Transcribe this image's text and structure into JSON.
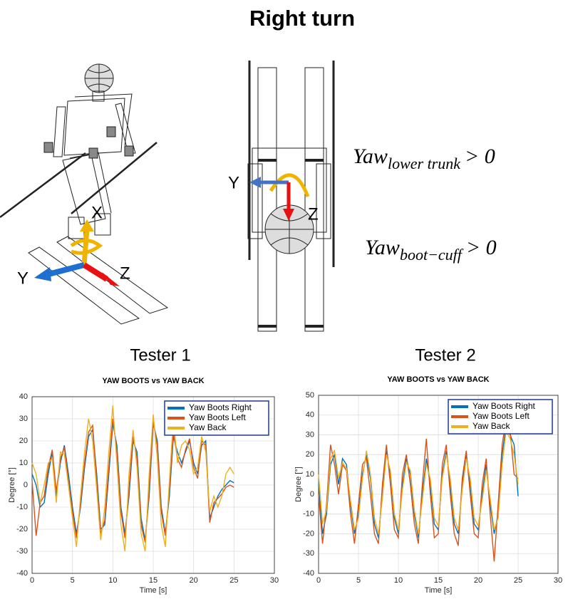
{
  "title": "Right turn",
  "diagram": {
    "left_axes": [
      "X",
      "Y",
      "Z"
    ],
    "middle_axes": [
      "Y",
      "Z"
    ],
    "equations": [
      {
        "base": "Yaw",
        "sub": "lower trunk",
        "rel": "> 0"
      },
      {
        "base": "Yaw",
        "sub": "boot−cuff",
        "rel": "> 0"
      }
    ]
  },
  "chart_data": [
    {
      "type": "line",
      "heading": "Tester 1",
      "title": "YAW BOOTS vs YAW BACK",
      "xlabel": "Time [s]",
      "ylabel": "Degree [°]",
      "xlim": [
        0,
        30
      ],
      "xticks": [
        0,
        5,
        10,
        15,
        20,
        25,
        30
      ],
      "ylim": [
        -40,
        40
      ],
      "yticks": [
        -40,
        -30,
        -20,
        -10,
        0,
        10,
        20,
        30,
        40
      ],
      "grid": true,
      "legend": "upper right",
      "x": [
        0,
        0.5,
        1,
        1.5,
        2,
        2.5,
        3,
        3.5,
        4,
        4.5,
        5,
        5.5,
        6,
        6.5,
        7,
        7.5,
        8,
        8.5,
        9,
        9.5,
        10,
        10.5,
        11,
        11.5,
        12,
        12.5,
        13,
        13.5,
        14,
        14.5,
        15,
        15.5,
        16,
        16.5,
        17,
        17.5,
        18,
        18.5,
        19,
        19.5,
        20,
        20.5,
        21,
        21.5,
        22,
        22.5,
        23,
        23.5,
        24,
        24.5,
        25
      ],
      "series": [
        {
          "name": "Yaw Boots Right",
          "color": "#0072bd",
          "values": [
            5,
            0,
            -10,
            -8,
            5,
            15,
            -5,
            10,
            18,
            5,
            -10,
            -22,
            -10,
            8,
            22,
            25,
            5,
            -20,
            -18,
            5,
            28,
            18,
            -10,
            -22,
            -5,
            20,
            15,
            -15,
            -25,
            -5,
            28,
            20,
            -10,
            -22,
            -5,
            22,
            15,
            10,
            15,
            20,
            10,
            5,
            18,
            20,
            -15,
            -10,
            -5,
            -2,
            0,
            2,
            1
          ]
        },
        {
          "name": "Yaw Boots Left",
          "color": "#d95319",
          "values": [
            2,
            -23,
            -8,
            -5,
            8,
            16,
            -3,
            12,
            17,
            2,
            -12,
            -24,
            -8,
            10,
            24,
            27,
            2,
            -22,
            -16,
            8,
            30,
            15,
            -12,
            -24,
            -2,
            22,
            12,
            -18,
            -26,
            -2,
            29,
            18,
            -12,
            -23,
            -2,
            24,
            12,
            8,
            16,
            21,
            8,
            3,
            20,
            18,
            -17,
            -8,
            -6,
            -4,
            -1,
            0,
            -1
          ]
        },
        {
          "name": "Yaw Back",
          "color": "#edb120",
          "values": [
            10,
            5,
            -8,
            0,
            10,
            12,
            -8,
            15,
            14,
            0,
            -15,
            -28,
            -5,
            15,
            30,
            20,
            -2,
            -25,
            -10,
            15,
            36,
            10,
            -18,
            -30,
            5,
            25,
            8,
            -22,
            -30,
            5,
            32,
            12,
            -18,
            -28,
            2,
            30,
            10,
            18,
            20,
            16,
            5,
            8,
            22,
            15,
            -12,
            -5,
            -10,
            -5,
            5,
            8,
            5
          ]
        }
      ]
    },
    {
      "type": "line",
      "heading": "Tester 2",
      "title": "YAW BOOTS vs YAW BACK",
      "xlabel": "Time [s]",
      "ylabel": "Degree [°]",
      "xlim": [
        0,
        30
      ],
      "xticks": [
        0,
        5,
        10,
        15,
        20,
        25,
        30
      ],
      "ylim": [
        -40,
        50
      ],
      "yticks": [
        -40,
        -30,
        -20,
        -10,
        0,
        10,
        20,
        30,
        40,
        50
      ],
      "grid": true,
      "legend": "upper right",
      "x": [
        0,
        0.5,
        1,
        1.5,
        2,
        2.5,
        3,
        3.5,
        4,
        4.5,
        5,
        5.5,
        6,
        6.5,
        7,
        7.5,
        8,
        8.5,
        9,
        9.5,
        10,
        10.5,
        11,
        11.5,
        12,
        12.5,
        13,
        13.5,
        14,
        14.5,
        15,
        15.5,
        16,
        16.5,
        17,
        17.5,
        18,
        18.5,
        19,
        19.5,
        20,
        20.5,
        21,
        21.5,
        22,
        22.5,
        23,
        23.5,
        24,
        24.5,
        25
      ],
      "series": [
        {
          "name": "Yaw Boots Right",
          "color": "#0072bd",
          "values": [
            5,
            -20,
            -10,
            15,
            20,
            5,
            18,
            15,
            -5,
            -20,
            -10,
            10,
            20,
            8,
            -15,
            -22,
            0,
            22,
            10,
            -12,
            -20,
            5,
            18,
            10,
            -10,
            -22,
            0,
            18,
            5,
            -15,
            -18,
            10,
            22,
            5,
            -15,
            -20,
            5,
            20,
            5,
            -15,
            -18,
            0,
            15,
            -5,
            -20,
            -10,
            20,
            35,
            30,
            25,
            -1
          ]
        },
        {
          "name": "Yaw Boots Left",
          "color": "#d95319",
          "values": [
            0,
            -25,
            -5,
            25,
            15,
            0,
            15,
            12,
            -10,
            -25,
            -5,
            15,
            18,
            0,
            -20,
            -25,
            5,
            25,
            5,
            -18,
            -22,
            10,
            20,
            5,
            -15,
            -25,
            5,
            28,
            0,
            -22,
            -20,
            15,
            25,
            0,
            -20,
            -26,
            8,
            22,
            0,
            -20,
            -22,
            5,
            18,
            -10,
            -34,
            -5,
            25,
            38,
            32,
            10,
            8
          ]
        },
        {
          "name": "Yaw Back",
          "color": "#edb120",
          "values": [
            10,
            -15,
            -8,
            18,
            22,
            8,
            16,
            13,
            -3,
            -18,
            -12,
            8,
            22,
            10,
            -12,
            -20,
            -2,
            20,
            12,
            -10,
            -18,
            2,
            16,
            12,
            -8,
            -20,
            -3,
            15,
            8,
            -12,
            -16,
            8,
            20,
            8,
            -12,
            -18,
            2,
            18,
            8,
            -12,
            -16,
            -3,
            12,
            -2,
            -18,
            -12,
            15,
            32,
            28,
            20,
            5
          ]
        }
      ]
    }
  ]
}
